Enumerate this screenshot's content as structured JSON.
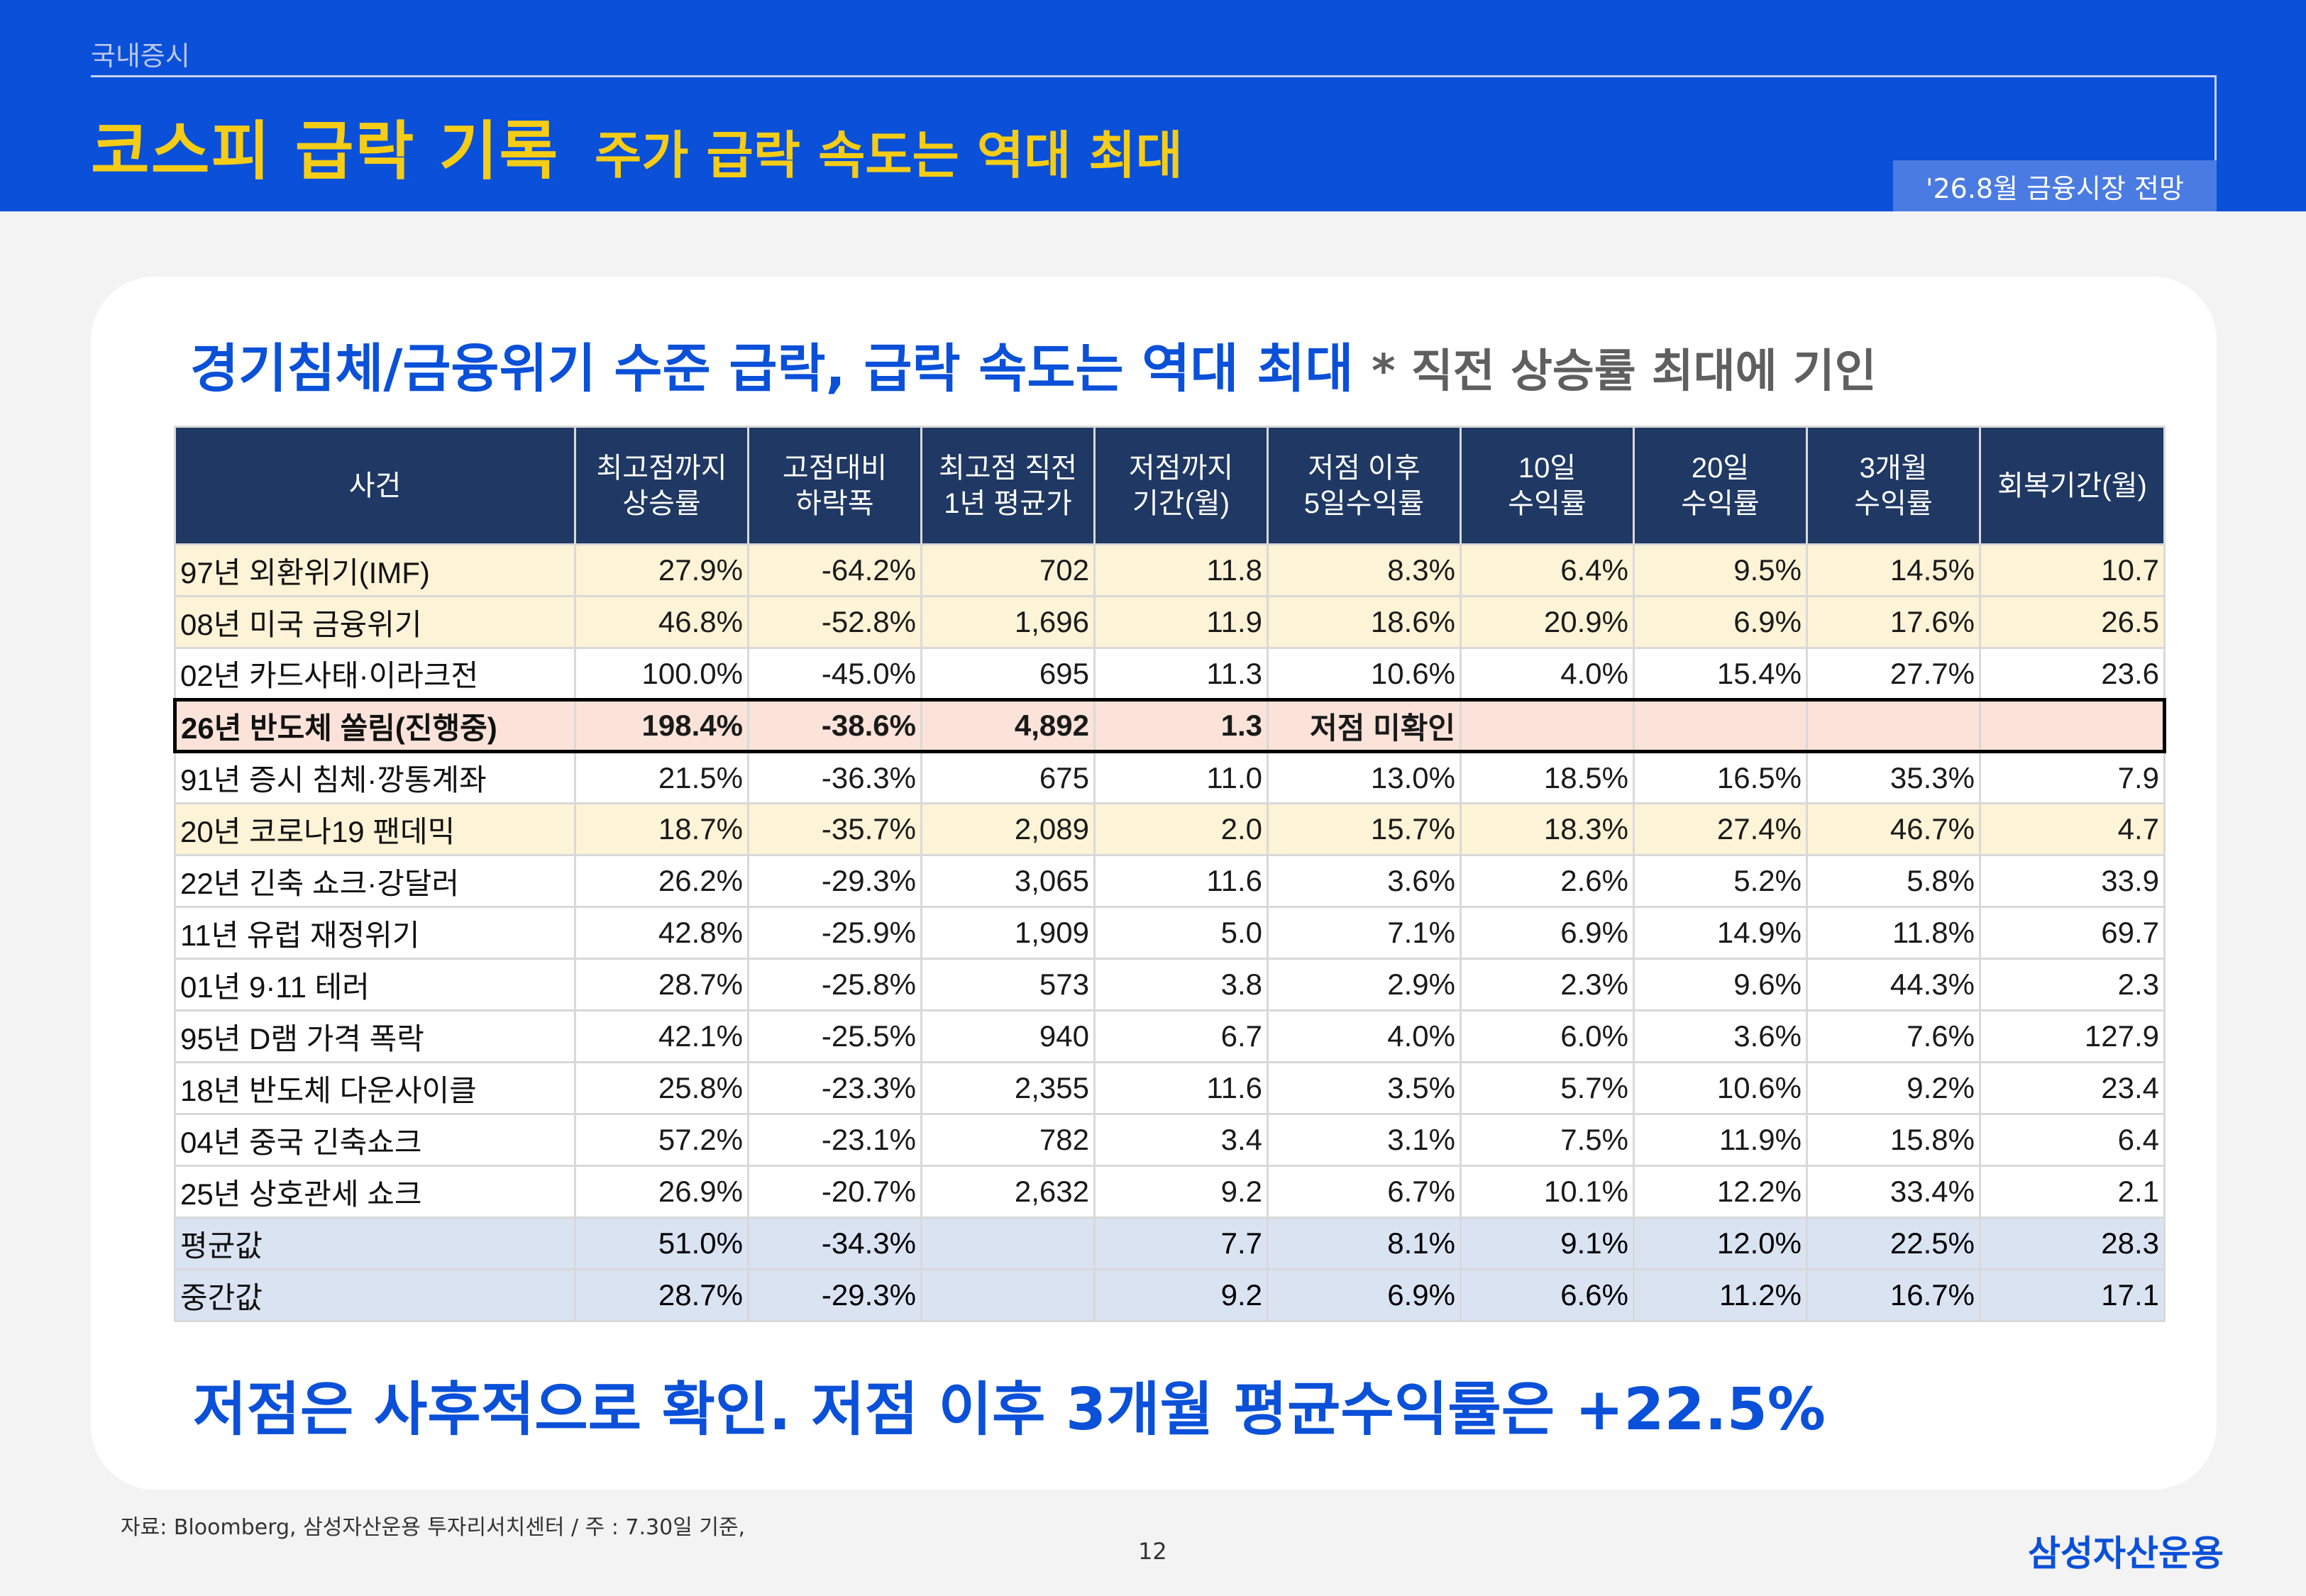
{
  "header": {
    "section": "국내증시",
    "title_main": "코스피 급락 기록",
    "title_sub": "주가 급락 속도는 역대 최대",
    "report_tag": "'26.8월 금융시장 전망"
  },
  "card": {
    "headline": "경기침체/금융위기 수준 급락, 급락 속도는 역대 최대",
    "headline_note": "* 직전 상승률 최대에 기인",
    "conclusion": "저점은 사후적으로 확인. 저점 이후 3개월 평균수익률은 +22.5%"
  },
  "table": {
    "columns": [
      [
        "사건"
      ],
      [
        "최고점까지",
        "상승률"
      ],
      [
        "고점대비",
        "하락폭"
      ],
      [
        "최고점 직전",
        "1년 평균가"
      ],
      [
        "저점까지",
        "기간(월)"
      ],
      [
        "저점 이후",
        "5일수익률"
      ],
      [
        "10일",
        "수익률"
      ],
      [
        "20일",
        "수익률"
      ],
      [
        "3개월",
        "수익률"
      ],
      [
        "회복기간(월)"
      ]
    ],
    "rows": [
      {
        "style": "yellow",
        "cells": [
          "97년 외환위기(IMF)",
          "27.9%",
          "-64.2%",
          "702",
          "11.8",
          "8.3%",
          "6.4%",
          "9.5%",
          "14.5%",
          "10.7"
        ]
      },
      {
        "style": "yellow",
        "cells": [
          "08년 미국 금융위기",
          "46.8%",
          "-52.8%",
          "1,696",
          "11.9",
          "18.6%",
          "20.9%",
          "6.9%",
          "17.6%",
          "26.5"
        ]
      },
      {
        "style": "",
        "cells": [
          "02년 카드사태·이라크전",
          "100.0%",
          "-45.0%",
          "695",
          "11.3",
          "10.6%",
          "4.0%",
          "15.4%",
          "27.7%",
          "23.6"
        ]
      },
      {
        "style": "pink",
        "cells": [
          "26년 반도체 쏠림(진행중)",
          "198.4%",
          "-38.6%",
          "4,892",
          "1.3",
          "저점 미확인",
          "",
          "",
          "",
          ""
        ]
      },
      {
        "style": "",
        "cells": [
          "91년 증시 침체·깡통계좌",
          "21.5%",
          "-36.3%",
          "675",
          "11.0",
          "13.0%",
          "18.5%",
          "16.5%",
          "35.3%",
          "7.9"
        ]
      },
      {
        "style": "yellow",
        "cells": [
          "20년 코로나19 팬데믹",
          "18.7%",
          "-35.7%",
          "2,089",
          "2.0",
          "15.7%",
          "18.3%",
          "27.4%",
          "46.7%",
          "4.7"
        ]
      },
      {
        "style": "",
        "cells": [
          "22년 긴축 쇼크·강달러",
          "26.2%",
          "-29.3%",
          "3,065",
          "11.6",
          "3.6%",
          "2.6%",
          "5.2%",
          "5.8%",
          "33.9"
        ]
      },
      {
        "style": "",
        "cells": [
          "11년 유럽 재정위기",
          "42.8%",
          "-25.9%",
          "1,909",
          "5.0",
          "7.1%",
          "6.9%",
          "14.9%",
          "11.8%",
          "69.7"
        ]
      },
      {
        "style": "",
        "cells": [
          "01년 9·11 테러",
          "28.7%",
          "-25.8%",
          "573",
          "3.8",
          "2.9%",
          "2.3%",
          "9.6%",
          "44.3%",
          "2.3"
        ]
      },
      {
        "style": "",
        "cells": [
          "95년 D램 가격 폭락",
          "42.1%",
          "-25.5%",
          "940",
          "6.7",
          "4.0%",
          "6.0%",
          "3.6%",
          "7.6%",
          "127.9"
        ]
      },
      {
        "style": "",
        "cells": [
          "18년 반도체 다운사이클",
          "25.8%",
          "-23.3%",
          "2,355",
          "11.6",
          "3.5%",
          "5.7%",
          "10.6%",
          "9.2%",
          "23.4"
        ]
      },
      {
        "style": "",
        "cells": [
          "04년 중국 긴축쇼크",
          "57.2%",
          "-23.1%",
          "782",
          "3.4",
          "3.1%",
          "7.5%",
          "11.9%",
          "15.8%",
          "6.4"
        ]
      },
      {
        "style": "",
        "cells": [
          "25년 상호관세 쇼크",
          "26.9%",
          "-20.7%",
          "2,632",
          "9.2",
          "6.7%",
          "10.1%",
          "12.2%",
          "33.4%",
          "2.1"
        ]
      },
      {
        "style": "summary",
        "cells": [
          "평균값",
          "51.0%",
          "-34.3%",
          "",
          "7.7",
          "8.1%",
          "9.1%",
          "12.0%",
          "22.5%",
          "28.3"
        ]
      },
      {
        "style": "summary",
        "cells": [
          "중간값",
          "28.7%",
          "-29.3%",
          "",
          "9.2",
          "6.9%",
          "6.6%",
          "11.2%",
          "16.7%",
          "17.1"
        ]
      }
    ]
  },
  "footer": {
    "source": "자료: Bloomberg, 삼성자산운용 투자리서치센터 / 주 : 7.30일 기준,",
    "page": "12",
    "logo": "삼성자산운용"
  }
}
